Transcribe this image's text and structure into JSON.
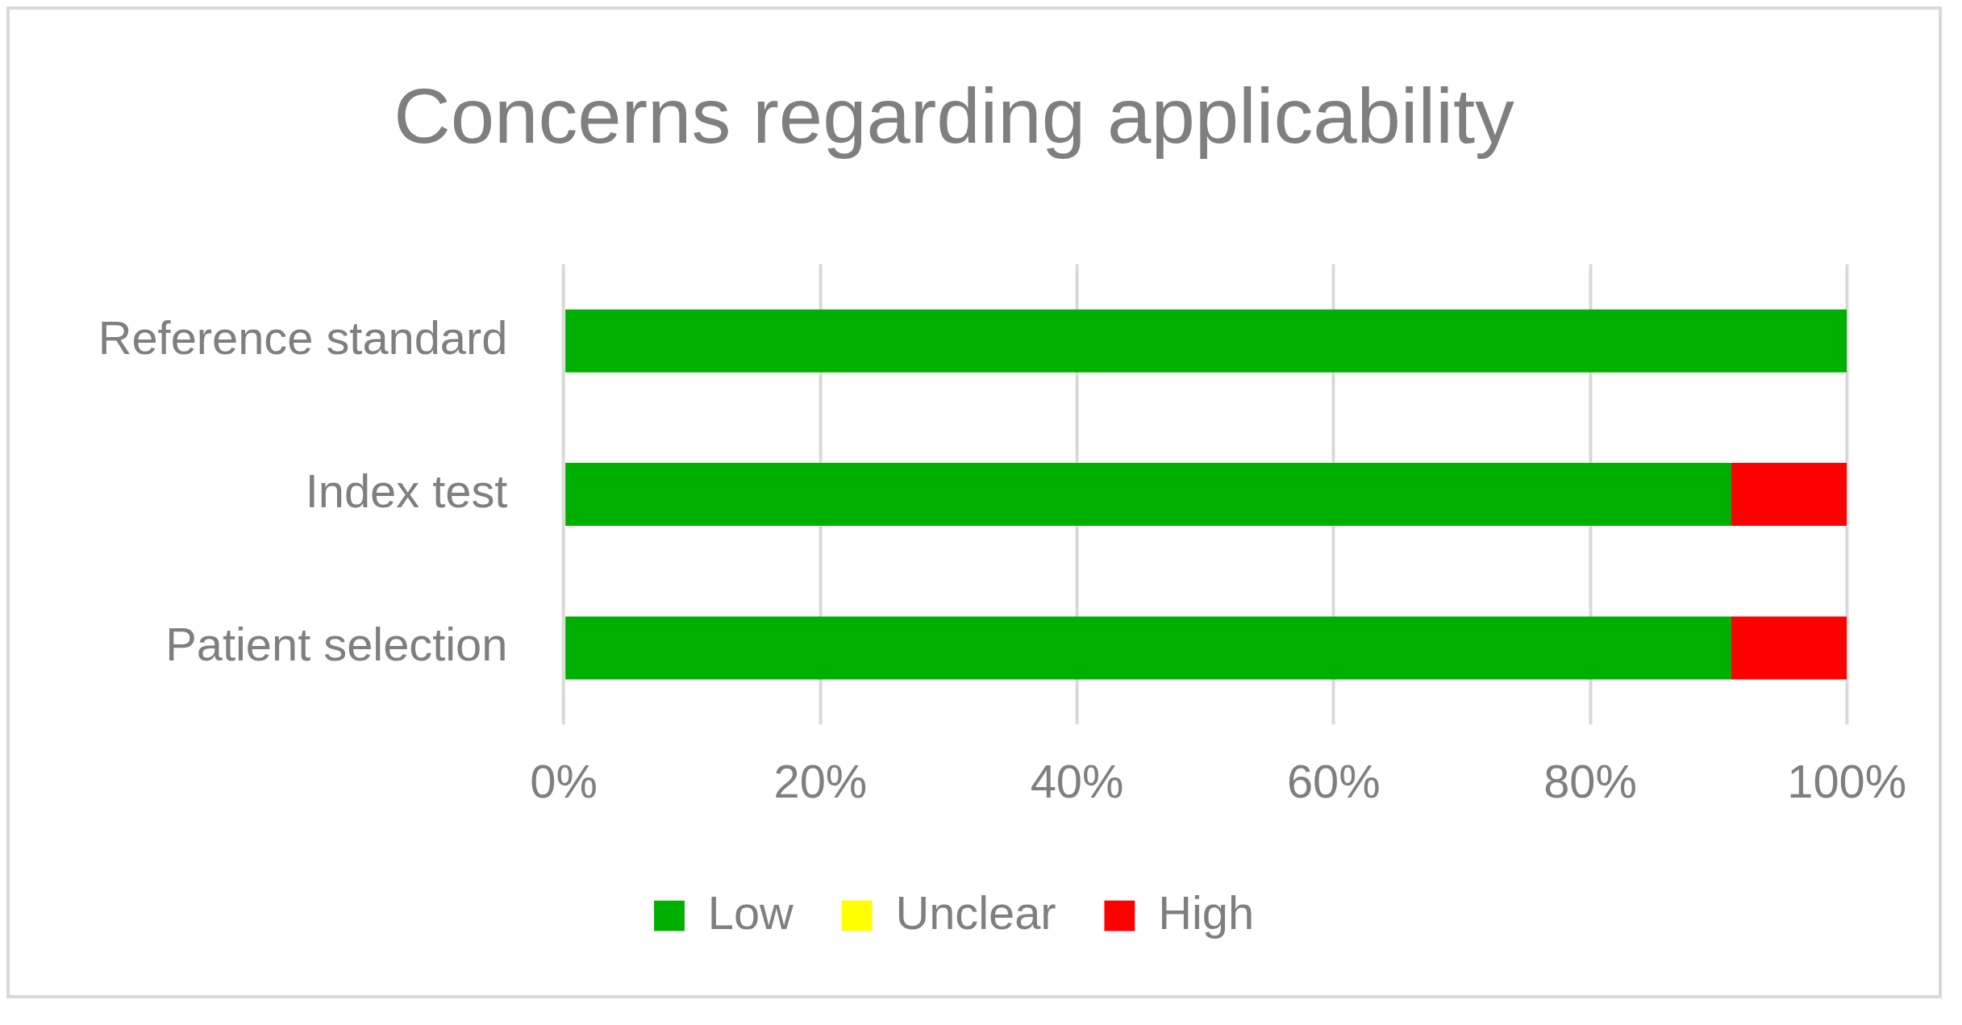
{
  "chart_data": {
    "type": "bar",
    "title": "Concerns regarding applicability",
    "orientation": "horizontal",
    "stacked": true,
    "categories": [
      "Reference standard",
      "Index test",
      "Patient selection"
    ],
    "series": [
      {
        "name": "Low",
        "color": "#00b000",
        "values": [
          100,
          91,
          91
        ]
      },
      {
        "name": "Unclear",
        "color": "#ffff00",
        "values": [
          0,
          0,
          0
        ]
      },
      {
        "name": "High",
        "color": "#ff0000",
        "values": [
          0,
          9,
          9
        ]
      }
    ],
    "xlim": [
      0,
      100
    ],
    "xticks": [
      {
        "value": 0,
        "label": "0%"
      },
      {
        "value": 20,
        "label": "20%"
      },
      {
        "value": 40,
        "label": "40%"
      },
      {
        "value": 60,
        "label": "60%"
      },
      {
        "value": 80,
        "label": "80%"
      },
      {
        "value": 100,
        "label": "100%"
      }
    ],
    "grid": "x",
    "legend": "bottom"
  }
}
